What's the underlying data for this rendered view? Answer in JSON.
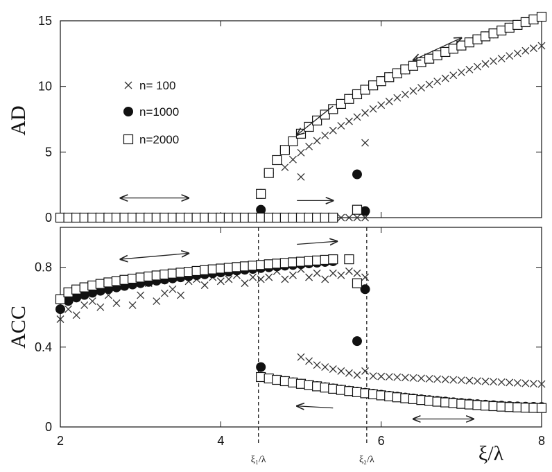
{
  "chart_data": [
    {
      "type": "scatter",
      "panel": "top",
      "ylabel": "AD",
      "xlim": [
        2,
        8
      ],
      "ylim": [
        0,
        15
      ],
      "yticks": [
        "0",
        "5",
        "10",
        "15"
      ],
      "legend": {
        "placement": "top-left",
        "entries": [
          {
            "label": "n= 100",
            "marker": "cross"
          },
          {
            "label": "n=1000",
            "marker": "filled-circle"
          },
          {
            "label": "n=2000",
            "marker": "open-square"
          }
        ]
      },
      "series": [
        {
          "name": "n= 100",
          "marker": "cross",
          "segments": [
            {
              "kind": "range",
              "x0": 2.0,
              "x1": 5.8,
              "step": 0.1,
              "y": 0
            },
            {
              "kind": "points",
              "x": [
                5.0,
                5.8
              ],
              "y": [
                3.1,
                5.7
              ]
            },
            {
              "kind": "curve",
              "x0": 4.8,
              "x1": 8.0,
              "step": 0.1,
              "xc": 4.5,
              "a": 7.0,
              "p": 0.5,
              "b": 0.0
            }
          ]
        },
        {
          "name": "n=1000",
          "marker": "filled-circle",
          "segments": [
            {
              "kind": "range",
              "x0": 2.0,
              "x1": 5.4,
              "step": 0.1,
              "y": 0
            },
            {
              "kind": "points",
              "x": [
                4.5,
                5.7,
                5.8
              ],
              "y": [
                0.6,
                3.3,
                0.5
              ]
            },
            {
              "kind": "curve",
              "x0": 4.5,
              "x1": 8.0,
              "step": 0.1,
              "xc": 4.47,
              "a": 8.35,
              "p": 0.47,
              "b": 0.2
            }
          ]
        },
        {
          "name": "n=2000",
          "marker": "open-square",
          "segments": [
            {
              "kind": "range",
              "x0": 2.0,
              "x1": 5.4,
              "step": 0.1,
              "y": 0
            },
            {
              "kind": "points",
              "x": [
                5.7
              ],
              "y": [
                0.6
              ]
            },
            {
              "kind": "curve",
              "x0": 4.5,
              "x1": 8.0,
              "step": 0.1,
              "xc": 4.47,
              "a": 8.35,
              "p": 0.47,
              "b": 0.2
            }
          ]
        }
      ],
      "arrows": [
        {
          "x1": 2.75,
          "y1": 1.5,
          "x2": 3.6,
          "y2": 1.5,
          "heads": "both"
        },
        {
          "x1": 5.4,
          "y1": 1.3,
          "x2": 4.95,
          "y2": 1.3,
          "heads": "reverse"
        },
        {
          "x1": 5.4,
          "y1": 8.5,
          "x2": 4.95,
          "y2": 6.3,
          "heads": "end"
        },
        {
          "x1": 6.4,
          "y1": 12.0,
          "x2": 7.0,
          "y2": 13.7,
          "heads": "both"
        }
      ]
    },
    {
      "type": "scatter",
      "panel": "bottom",
      "ylabel": "ACC",
      "xlabel": "ξ/λ",
      "xlim": [
        2,
        8
      ],
      "ylim": [
        0,
        1.0
      ],
      "xticks": [
        "2",
        "4",
        "6",
        "8"
      ],
      "yticks": [
        "0",
        "0.4",
        "0.8"
      ],
      "vlines": [
        {
          "x": 4.47,
          "label": "ξ₁/λ"
        },
        {
          "x": 5.82,
          "label": "ξ₂/λ"
        }
      ],
      "series": [
        {
          "name": "n= 100",
          "marker": "cross",
          "points": [
            [
              2.0,
              0.54
            ],
            [
              2.1,
              0.59
            ],
            [
              2.2,
              0.56
            ],
            [
              2.3,
              0.61
            ],
            [
              2.4,
              0.63
            ],
            [
              2.5,
              0.6
            ],
            [
              2.6,
              0.66
            ],
            [
              2.7,
              0.62
            ],
            [
              2.8,
              0.74
            ],
            [
              2.9,
              0.61
            ],
            [
              3.0,
              0.66
            ],
            [
              3.1,
              0.72
            ],
            [
              3.2,
              0.63
            ],
            [
              3.3,
              0.67
            ],
            [
              3.4,
              0.69
            ],
            [
              3.5,
              0.66
            ],
            [
              3.6,
              0.73
            ],
            [
              3.7,
              0.74
            ],
            [
              3.8,
              0.71
            ],
            [
              3.9,
              0.75
            ],
            [
              4.0,
              0.73
            ],
            [
              4.1,
              0.74
            ],
            [
              4.2,
              0.76
            ],
            [
              4.3,
              0.72
            ],
            [
              4.4,
              0.75
            ],
            [
              4.5,
              0.74
            ],
            [
              4.6,
              0.75
            ],
            [
              4.7,
              0.78
            ],
            [
              4.8,
              0.74
            ],
            [
              4.9,
              0.76
            ],
            [
              5.0,
              0.79
            ],
            [
              5.1,
              0.75
            ],
            [
              5.2,
              0.77
            ],
            [
              5.3,
              0.74
            ],
            [
              5.4,
              0.77
            ],
            [
              5.5,
              0.76
            ],
            [
              5.6,
              0.78
            ],
            [
              5.7,
              0.77
            ],
            [
              5.8,
              0.75
            ],
            [
              5.8,
              0.28
            ],
            [
              5.0,
              0.35
            ],
            [
              5.1,
              0.33
            ],
            [
              5.2,
              0.31
            ],
            [
              5.3,
              0.3
            ],
            [
              5.4,
              0.29
            ],
            [
              5.5,
              0.28
            ],
            [
              5.6,
              0.27
            ],
            [
              5.7,
              0.26
            ]
          ],
          "tail": {
            "x0": 5.9,
            "x1": 8.0,
            "step": 0.1,
            "y0": 0.255,
            "y1": 0.215
          }
        },
        {
          "name": "n=1000",
          "marker": "filled-circle",
          "upper": {
            "x0": 2.0,
            "x1": 5.4,
            "step": 0.1,
            "y0": 0.59,
            "y1": 0.83
          },
          "lower": {
            "x0": 4.5,
            "x1": 8.0,
            "step": 0.1,
            "y0": 0.25,
            "y1": 0.1
          },
          "points": [
            [
              4.5,
              0.3
            ],
            [
              5.7,
              0.43
            ],
            [
              5.8,
              0.69
            ]
          ]
        },
        {
          "name": "n=2000",
          "marker": "open-square",
          "upper": {
            "x0": 2.0,
            "x1": 5.4,
            "step": 0.1,
            "y0": 0.64,
            "y1": 0.84
          },
          "lower": {
            "x0": 4.5,
            "x1": 8.0,
            "step": 0.1,
            "y0": 0.25,
            "y1": 0.095
          },
          "points": [
            [
              5.6,
              0.84
            ],
            [
              5.7,
              0.72
            ]
          ]
        }
      ],
      "arrows": [
        {
          "x1": 2.75,
          "y1": 0.84,
          "x2": 3.6,
          "y2": 0.87,
          "heads": "both"
        },
        {
          "x1": 4.95,
          "y1": 0.915,
          "x2": 5.45,
          "y2": 0.93,
          "heads": "end"
        },
        {
          "x1": 5.4,
          "y1": 0.095,
          "x2": 4.95,
          "y2": 0.105,
          "heads": "end"
        },
        {
          "x1": 6.4,
          "y1": 0.04,
          "x2": 7.15,
          "y2": 0.04,
          "heads": "both"
        }
      ]
    }
  ]
}
